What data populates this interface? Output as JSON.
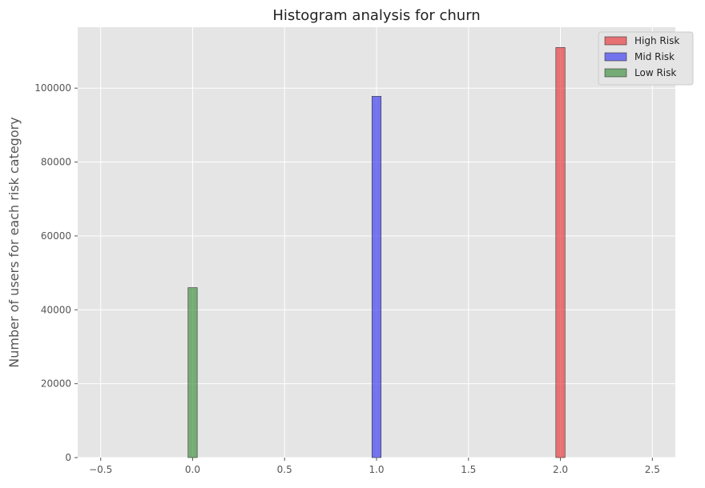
{
  "chart_data": {
    "type": "bar",
    "title": "Histogram analysis for churn",
    "xlabel": "",
    "ylabel": "Number of users for each risk category",
    "xlim": [
      -0.625,
      2.625
    ],
    "ylim": [
      0,
      116500
    ],
    "x_ticks": [
      -0.5,
      0.0,
      0.5,
      1.0,
      1.5,
      2.0,
      2.5
    ],
    "x_tick_labels": [
      "−0.5",
      "0.0",
      "0.5",
      "1.0",
      "1.5",
      "2.0",
      "2.5"
    ],
    "y_ticks": [
      0,
      20000,
      40000,
      60000,
      80000,
      100000
    ],
    "y_tick_labels": [
      "0",
      "20000",
      "40000",
      "60000",
      "80000",
      "100000"
    ],
    "grid": true,
    "legend_position": "top-right",
    "bar_width": 0.05,
    "series": [
      {
        "name": "High Risk",
        "color": "#e8383b",
        "x": 2.0,
        "value": 111000
      },
      {
        "name": "Mid Risk",
        "color": "#3c3cf0",
        "x": 1.0,
        "value": 97800
      },
      {
        "name": "Low Risk",
        "color": "#3f8f3f",
        "x": 0.0,
        "value": 46000
      }
    ]
  }
}
